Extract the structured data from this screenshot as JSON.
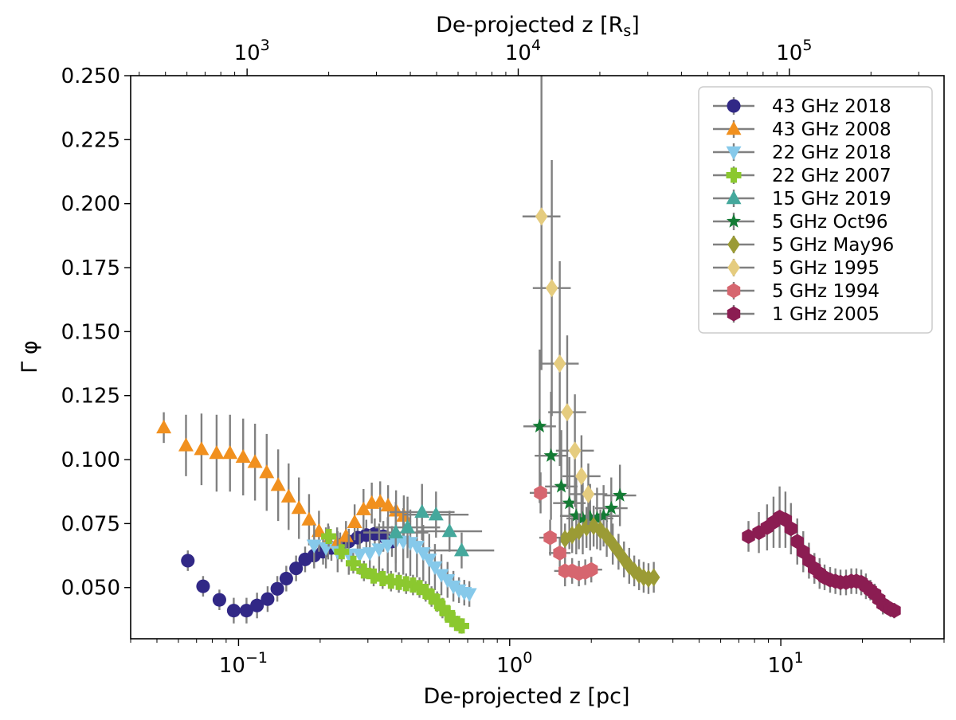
{
  "chart_data": {
    "type": "scatter",
    "title": "",
    "xlabel": "De-projected z [pc]",
    "x2label_prefix": "De-projected z [R",
    "x2label_sub": "s",
    "x2label_suffix": "]",
    "ylabel": "Γ φ",
    "xscale": "log",
    "xlim": [
      0.04,
      40
    ],
    "ylim": [
      0.03,
      0.25
    ],
    "x_ticks": [
      {
        "value": 0.1,
        "base": "10",
        "exp": "−1"
      },
      {
        "value": 1,
        "base": "10",
        "exp": "0"
      },
      {
        "value": 10,
        "base": "10",
        "exp": "1"
      }
    ],
    "x2_ticks": [
      {
        "value": 1000,
        "base": "10",
        "exp": "3"
      },
      {
        "value": 10000,
        "base": "10",
        "exp": "4"
      },
      {
        "value": 100000,
        "base": "10",
        "exp": "5"
      }
    ],
    "rs_per_pc": 9300,
    "y_ticks": [
      "0.050",
      "0.075",
      "0.100",
      "0.125",
      "0.150",
      "0.175",
      "0.200",
      "0.225",
      "0.250"
    ],
    "grid": false,
    "legend_position": "top-right",
    "series": [
      {
        "name": "43 GHz 2018",
        "color": "#312886",
        "marker": "circle",
        "x": [
          0.065,
          0.074,
          0.085,
          0.096,
          0.107,
          0.117,
          0.128,
          0.139,
          0.15,
          0.163,
          0.176,
          0.19,
          0.205,
          0.22,
          0.237,
          0.255,
          0.275,
          0.296,
          0.318,
          0.342,
          0.368
        ],
        "y": [
          0.0605,
          0.0505,
          0.0452,
          0.041,
          0.041,
          0.043,
          0.0455,
          0.0495,
          0.0535,
          0.0575,
          0.061,
          0.0625,
          0.064,
          0.0655,
          0.0665,
          0.068,
          0.0695,
          0.0705,
          0.071,
          0.07,
          0.068
        ],
        "err": [
          0.004,
          0.004,
          0.004,
          0.005,
          0.005,
          0.005,
          0.005,
          0.005,
          0.005,
          0.005,
          0.005,
          0.005,
          0.005,
          0.005,
          0.005,
          0.005,
          0.006,
          0.006,
          0.006,
          0.006,
          0.006
        ],
        "xerr": 0.0
      },
      {
        "name": "43 GHz 2008",
        "color": "#f1901e",
        "marker": "triangle-up",
        "x": [
          0.053,
          0.064,
          0.073,
          0.083,
          0.093,
          0.104,
          0.115,
          0.127,
          0.14,
          0.153,
          0.167,
          0.182,
          0.198,
          0.214,
          0.231,
          0.249,
          0.268,
          0.289,
          0.31,
          0.333,
          0.356,
          0.381,
          0.407
        ],
        "y": [
          0.1125,
          0.1055,
          0.104,
          0.1025,
          0.1025,
          0.101,
          0.099,
          0.095,
          0.09,
          0.0855,
          0.081,
          0.0765,
          0.072,
          0.068,
          0.0675,
          0.07,
          0.0755,
          0.0805,
          0.083,
          0.0835,
          0.082,
          0.08,
          0.078
        ],
        "err": [
          0.006,
          0.012,
          0.014,
          0.015,
          0.015,
          0.015,
          0.015,
          0.015,
          0.014,
          0.013,
          0.012,
          0.01,
          0.008,
          0.007,
          0.006,
          0.006,
          0.007,
          0.008,
          0.008,
          0.008,
          0.008,
          0.008,
          0.008
        ],
        "xerr": 0.0
      },
      {
        "name": "22 GHz 2018",
        "color": "#86c9ea",
        "marker": "triangle-down",
        "x": [
          0.19,
          0.21,
          0.232,
          0.255,
          0.28,
          0.305,
          0.33,
          0.355,
          0.38,
          0.405,
          0.43,
          0.455,
          0.48,
          0.505,
          0.53,
          0.56,
          0.59,
          0.62,
          0.65,
          0.68,
          0.71
        ],
        "y": [
          0.0665,
          0.0655,
          0.064,
          0.063,
          0.063,
          0.0635,
          0.065,
          0.0665,
          0.068,
          0.068,
          0.0675,
          0.066,
          0.0635,
          0.061,
          0.058,
          0.055,
          0.053,
          0.0505,
          0.049,
          0.048,
          0.0475
        ],
        "err": [
          0.008,
          0.008,
          0.008,
          0.008,
          0.008,
          0.009,
          0.01,
          0.011,
          0.012,
          0.013,
          0.013,
          0.012,
          0.011,
          0.01,
          0.009,
          0.008,
          0.007,
          0.006,
          0.005,
          0.005,
          0.005
        ],
        "xerr": 0.0
      },
      {
        "name": "22 GHz 2007",
        "color": "#8bc82f",
        "marker": "plus",
        "x": [
          0.215,
          0.24,
          0.265,
          0.29,
          0.315,
          0.34,
          0.365,
          0.39,
          0.415,
          0.44,
          0.465,
          0.49,
          0.515,
          0.54,
          0.565,
          0.59,
          0.615,
          0.64,
          0.665
        ],
        "y": [
          0.07,
          0.064,
          0.0595,
          0.0565,
          0.0545,
          0.0535,
          0.0525,
          0.052,
          0.0515,
          0.051,
          0.05,
          0.0485,
          0.0465,
          0.0445,
          0.042,
          0.04,
          0.0375,
          0.036,
          0.035
        ],
        "err": [
          0.004,
          0.004,
          0.004,
          0.004,
          0.004,
          0.004,
          0.004,
          0.004,
          0.004,
          0.004,
          0.004,
          0.004,
          0.004,
          0.004,
          0.004,
          0.003,
          0.003,
          0.003,
          0.003
        ],
        "xerr": 0.0
      },
      {
        "name": "15 GHz 2019",
        "color": "#45a89c",
        "marker": "triangle-up",
        "x": [
          0.38,
          0.42,
          0.475,
          0.535,
          0.6,
          0.665
        ],
        "y": [
          0.0715,
          0.0735,
          0.0795,
          0.0785,
          0.072,
          0.0645
        ],
        "err": [
          0.012,
          0.012,
          0.011,
          0.009,
          0.008,
          0.007
        ],
        "xerr": 0.12
      },
      {
        "name": "5 GHz Oct96",
        "color": "#137b34",
        "marker": "star",
        "x": [
          1.29,
          1.42,
          1.55,
          1.66,
          1.76,
          1.86,
          1.98,
          2.1,
          2.22,
          2.37,
          2.55
        ],
        "y": [
          0.113,
          0.1015,
          0.0895,
          0.083,
          0.078,
          0.077,
          0.0775,
          0.077,
          0.078,
          0.081,
          0.086
        ],
        "err": [
          0.03,
          0.025,
          0.022,
          0.018,
          0.015,
          0.014,
          0.013,
          0.012,
          0.012,
          0.012,
          0.012
        ],
        "xerr": 0.06
      },
      {
        "name": "5 GHz May96",
        "color": "#9b9b35",
        "marker": "diamond",
        "x": [
          1.6,
          1.7,
          1.8,
          1.92,
          2.04,
          2.16,
          2.28,
          2.4,
          2.52,
          2.64,
          2.76,
          2.88,
          3.0,
          3.12,
          3.25,
          3.4
        ],
        "y": [
          0.069,
          0.0705,
          0.072,
          0.0735,
          0.074,
          0.0725,
          0.07,
          0.067,
          0.064,
          0.061,
          0.0585,
          0.0565,
          0.055,
          0.054,
          0.0535,
          0.054
        ],
        "err": [
          0.006,
          0.007,
          0.007,
          0.008,
          0.008,
          0.008,
          0.008,
          0.008,
          0.007,
          0.007,
          0.007,
          0.006,
          0.006,
          0.006,
          0.006,
          0.006
        ],
        "xerr": 0.0
      },
      {
        "name": "5 GHz 1995",
        "color": "#e5cc7f",
        "marker": "diamond",
        "x": [
          1.31,
          1.43,
          1.53,
          1.63,
          1.74,
          1.84,
          1.95
        ],
        "y": [
          0.195,
          0.167,
          0.1375,
          0.1185,
          0.1035,
          0.0935,
          0.0865
        ],
        "err": [
          0.06,
          0.05,
          0.04,
          0.03,
          0.022,
          0.016,
          0.012
        ],
        "xerr": 0.07
      },
      {
        "name": "5 GHz 1994",
        "color": "#d6666f",
        "marker": "hexagon",
        "x": [
          1.3,
          1.41,
          1.53,
          1.6,
          1.7,
          1.8,
          1.9,
          2.0
        ],
        "y": [
          0.087,
          0.0695,
          0.0635,
          0.0565,
          0.0565,
          0.0555,
          0.056,
          0.057
        ],
        "err": [
          0.008,
          0.007,
          0.006,
          0.006,
          0.005,
          0.005,
          0.005,
          0.005
        ],
        "xerr": 0.04
      },
      {
        "name": "1 GHz 2005",
        "color": "#8b1d52",
        "marker": "hexagon",
        "x": [
          7.6,
          8.3,
          8.9,
          9.4,
          9.9,
          10.4,
          10.9,
          11.5,
          12.1,
          12.7,
          13.3,
          13.9,
          14.5,
          15.2,
          15.9,
          16.6,
          17.4,
          18.2,
          19.0,
          19.8,
          20.6,
          21.4,
          22.2,
          23.0,
          23.8,
          24.6,
          25.4,
          26.2
        ],
        "y": [
          0.07,
          0.0715,
          0.0735,
          0.0755,
          0.0775,
          0.0765,
          0.073,
          0.068,
          0.064,
          0.0605,
          0.0575,
          0.0555,
          0.054,
          0.053,
          0.0525,
          0.052,
          0.052,
          0.0525,
          0.0525,
          0.052,
          0.0505,
          0.049,
          0.0475,
          0.0455,
          0.0435,
          0.0425,
          0.0415,
          0.041
        ],
        "err": [
          0.006,
          0.008,
          0.009,
          0.01,
          0.012,
          0.011,
          0.01,
          0.009,
          0.008,
          0.007,
          0.006,
          0.006,
          0.005,
          0.005,
          0.005,
          0.005,
          0.005,
          0.005,
          0.005,
          0.005,
          0.005,
          0.004,
          0.004,
          0.004,
          0.004,
          0.003,
          0.003,
          0.003
        ],
        "xerr": 0.0
      }
    ]
  }
}
